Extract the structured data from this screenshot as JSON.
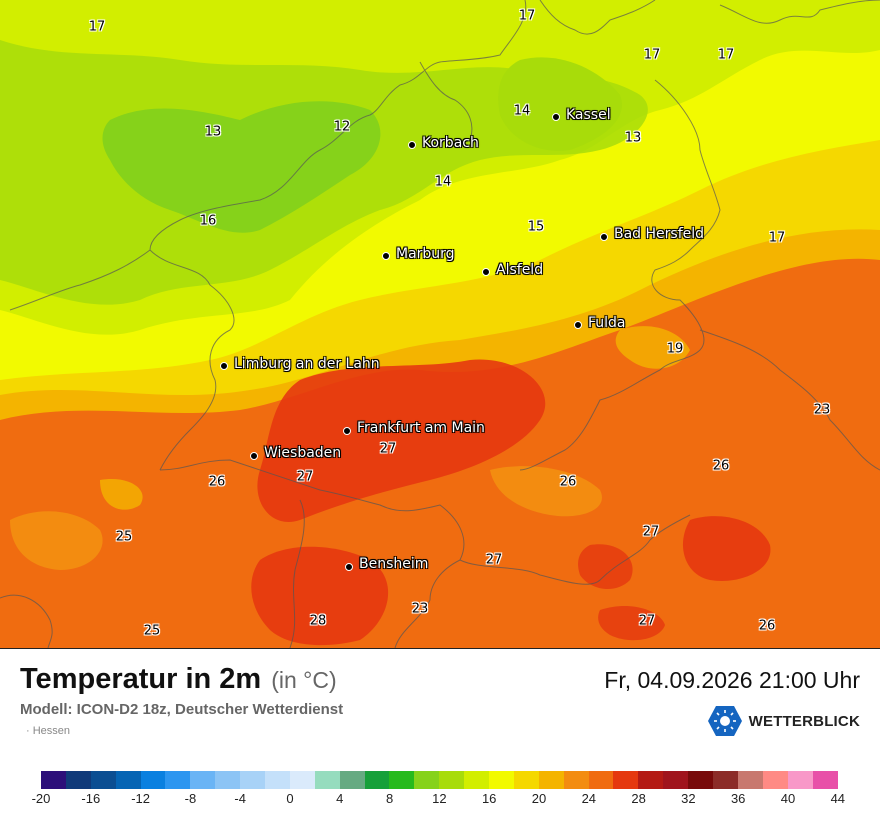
{
  "title": "Temperatur in 2m",
  "unit": "(in °C)",
  "datetime": "Fr, 04.09.2026 21:00 Uhr",
  "model": "Modell: ICON-D2 18z, Deutscher Wetterdienst",
  "region": "· Hessen",
  "brand": "WETTERBLICK",
  "cities": [
    {
      "name": "Kassel"
    },
    {
      "name": "Korbach"
    },
    {
      "name": "Bad Hersfeld"
    },
    {
      "name": "Marburg"
    },
    {
      "name": "Alsfeld"
    },
    {
      "name": "Fulda"
    },
    {
      "name": "Limburg an der Lahn"
    },
    {
      "name": "Frankfurt am Main"
    },
    {
      "name": "Wiesbaden"
    },
    {
      "name": "Bensheim"
    }
  ],
  "values": [
    "17",
    "17",
    "17",
    "17",
    "14",
    "13",
    "13",
    "12",
    "14",
    "16",
    "15",
    "17",
    "19",
    "23",
    "26",
    "27",
    "27",
    "26",
    "26",
    "25",
    "27",
    "27",
    "23",
    "28",
    "25",
    "27",
    "26"
  ],
  "scale": {
    "ticks": [
      "-20",
      "-16",
      "-12",
      "-8",
      "-4",
      "0",
      "4",
      "8",
      "12",
      "16",
      "20",
      "24",
      "28",
      "32",
      "36",
      "40",
      "44"
    ],
    "colors": [
      "#2c0f7a",
      "#103a7a",
      "#0b4e92",
      "#0564b4",
      "#0a80e0",
      "#2d96f0",
      "#6ab4f5",
      "#8cc4f5",
      "#a8d2f7",
      "#c4e0fa",
      "#daeafb",
      "#96dcbe",
      "#66aa82",
      "#16a03a",
      "#27ba1c",
      "#86d21a",
      "#a8dc0a",
      "#d2ee00",
      "#f2fa00",
      "#f5d800",
      "#f4b400",
      "#f38c10",
      "#f06c10",
      "#e5380f",
      "#b41a14",
      "#a0141c",
      "#780a0a",
      "#8c2c28",
      "#c8786e",
      "#ff8a84",
      "#f898c8",
      "#e850a8"
    ]
  }
}
